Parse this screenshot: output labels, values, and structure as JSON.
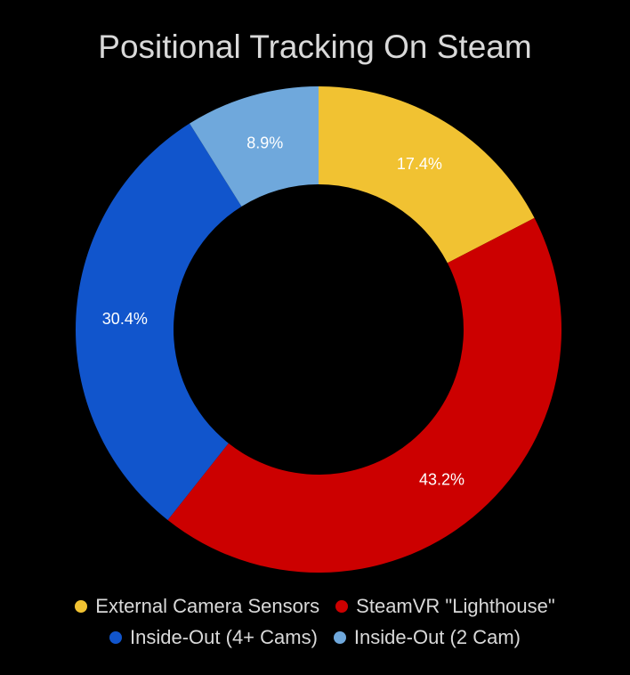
{
  "chart_data": {
    "type": "pie",
    "title": "Positional Tracking On Steam",
    "donut": true,
    "categories": [
      "External Camera Sensors",
      "SteamVR \"Lighthouse\"",
      "Inside-Out (4+ Cams)",
      "Inside-Out (2 Cam)"
    ],
    "values": [
      17.4,
      43.2,
      30.4,
      8.9
    ],
    "data_labels": [
      "17.4%",
      "43.2%",
      "30.4%",
      "8.9%"
    ],
    "colors": [
      "#f1c232",
      "#cc0000",
      "#1155cc",
      "#6fa8dc"
    ],
    "legend_position": "bottom"
  }
}
